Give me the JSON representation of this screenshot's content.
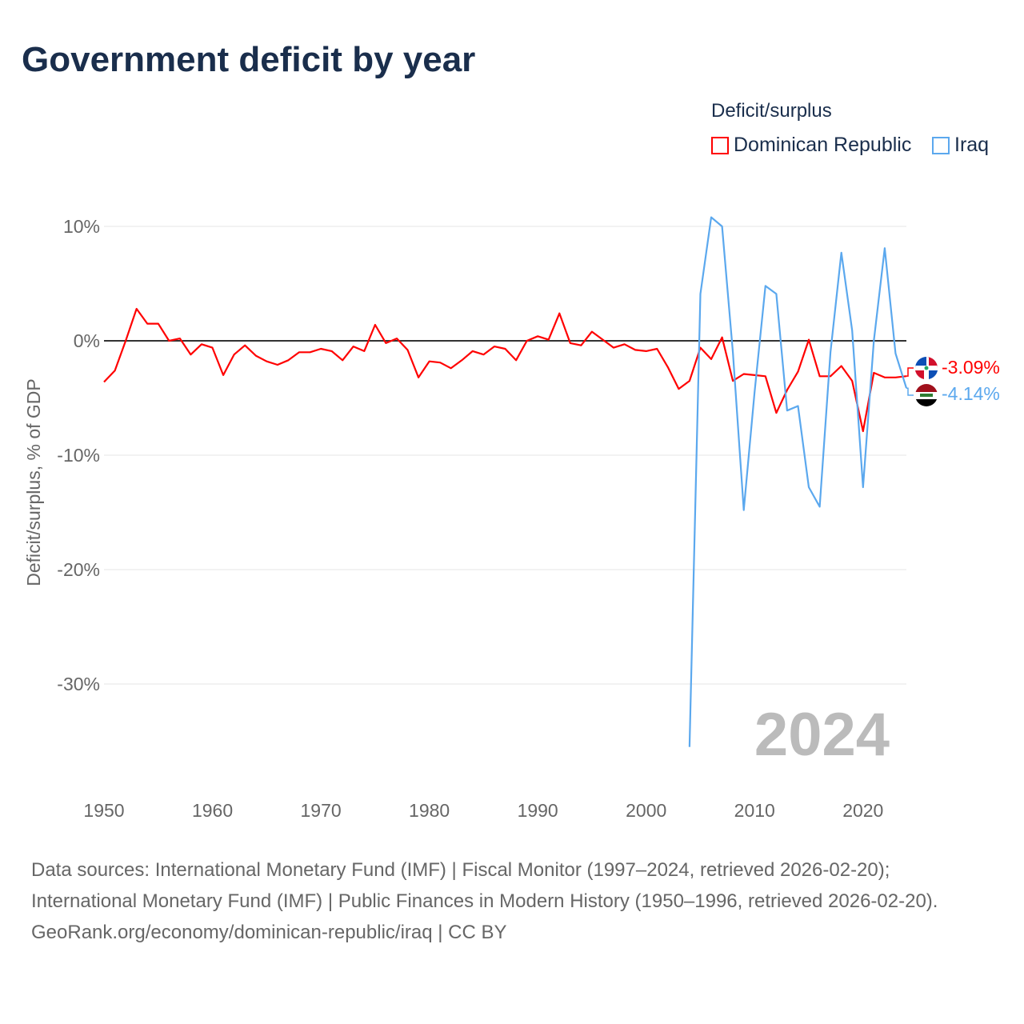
{
  "title": "Government deficit by year",
  "legend": {
    "title": "Deficit/surplus",
    "items": [
      {
        "label": "Dominican Republic",
        "color": "#ff0000"
      },
      {
        "label": "Iraq",
        "color": "#5ba8ee"
      }
    ]
  },
  "end_labels": [
    "-3.09%",
    "-4.14%"
  ],
  "year_watermark": "2024",
  "footer": {
    "sources": "Data sources: International Monetary Fund (IMF) | Fiscal Monitor (1997–2024, retrieved 2026-02-20); International Monetary Fund (IMF) | Public Finances in Modern History (1950–1996, retrieved 2026-02-20).",
    "attribution": "GeoRank.org/economy/dominican-republic/iraq | CC BY"
  },
  "chart_data": {
    "type": "line",
    "title": "Government deficit by year",
    "xlabel": "",
    "ylabel": "Deficit/surplus, % of GDP",
    "xlim": [
      1950,
      2024
    ],
    "ylim": [
      -37,
      11
    ],
    "x_ticks": [
      "1950",
      "1960",
      "1970",
      "1980",
      "1990",
      "2000",
      "2010",
      "2020"
    ],
    "y_ticks": [
      {
        "v": 10,
        "label": "10%"
      },
      {
        "v": 0,
        "label": "0%"
      },
      {
        "v": -10,
        "label": "-10%"
      },
      {
        "v": -20,
        "label": "-20%"
      },
      {
        "v": -30,
        "label": "-30%"
      }
    ],
    "grid": true,
    "legend_position": "top-right",
    "series": [
      {
        "name": "Dominican Republic",
        "color": "#ff0000",
        "start_year": 1950,
        "values": [
          -3.6,
          -2.6,
          0,
          2.8,
          1.5,
          1.5,
          0,
          0.2,
          -1.2,
          -0.3,
          -0.6,
          -3.0,
          -1.2,
          -0.4,
          -1.3,
          -1.8,
          -2.1,
          -1.7,
          -1.0,
          -1.0,
          -0.7,
          -0.9,
          -1.7,
          -0.5,
          -0.9,
          1.4,
          -0.2,
          0.2,
          -0.8,
          -3.2,
          -1.8,
          -1.9,
          -2.4,
          -1.7,
          -0.9,
          -1.2,
          -0.5,
          -0.7,
          -1.7,
          0,
          0.4,
          0.1,
          2.4,
          -0.2,
          -0.4,
          0.8,
          0.1,
          -0.6,
          -0.3,
          -0.8,
          -0.9,
          -0.7,
          -2.3,
          -4.2,
          -3.5,
          -0.6,
          -1.6,
          0.3,
          -3.5,
          -2.9,
          -3.0,
          -3.1,
          -6.3,
          -4.3,
          -2.7,
          0.1,
          -3.1,
          -3.1,
          -2.2,
          -3.5,
          -7.9,
          -2.8,
          -3.2,
          -3.2,
          -3.09
        ]
      },
      {
        "name": "Iraq",
        "color": "#5ba8ee",
        "start_year": 2004,
        "values": [
          -35.5,
          4.1,
          10.8,
          10.0,
          -1.0,
          -14.8,
          -4.5,
          4.8,
          4.1,
          -6.1,
          -5.7,
          -12.8,
          -14.5,
          -1.0,
          7.7,
          0.9,
          -12.8,
          0,
          8.1,
          -1.1,
          -4.14
        ]
      }
    ]
  }
}
